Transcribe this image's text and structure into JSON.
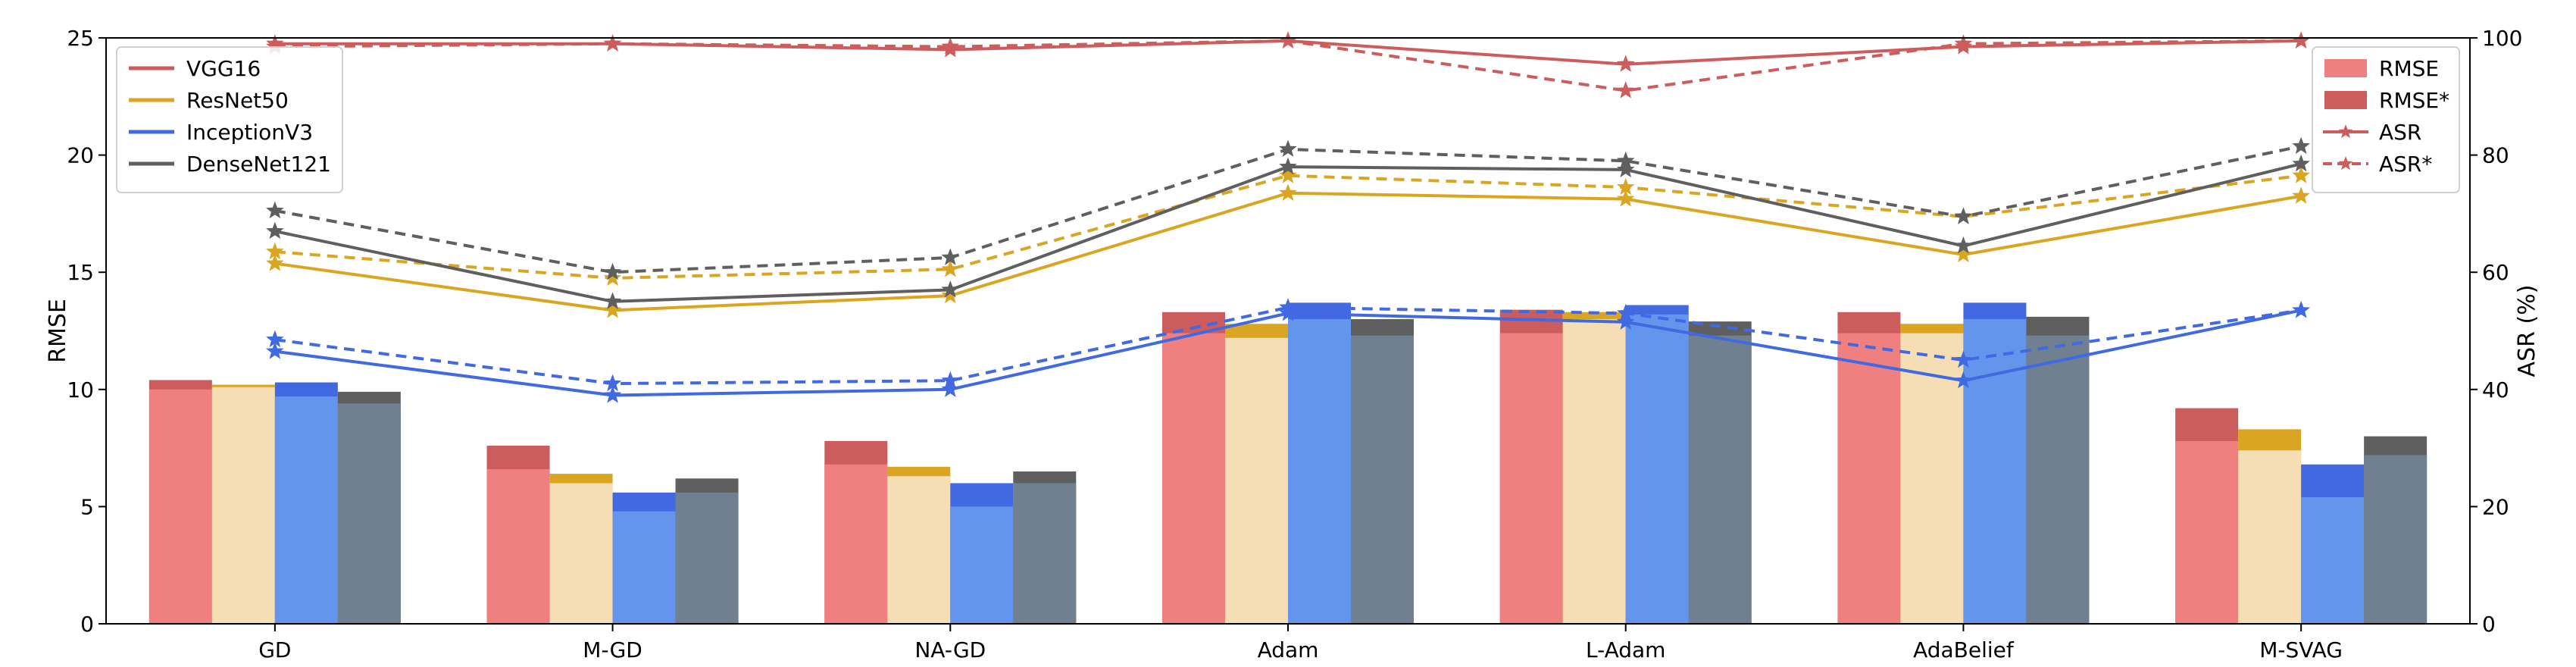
{
  "chart_data": {
    "type": "bar",
    "categories": [
      "GD",
      "M-GD",
      "NA-GD",
      "Adam",
      "L-Adam",
      "AdaBelief",
      "M-SVAG"
    ],
    "ylabel_left": "RMSE",
    "ylabel_right": "ASR (%)",
    "ylim_left": [
      0,
      25
    ],
    "ylim_right": [
      0,
      100
    ],
    "yticks_left": [
      "0",
      "5",
      "10",
      "15",
      "20",
      "25"
    ],
    "yticks_right": [
      "0",
      "20",
      "40",
      "60",
      "80",
      "100"
    ],
    "grid": false,
    "colors": {
      "VGG16": {
        "line": "#cd5c5c",
        "bar": "#f08080",
        "bar_star": "#cd5c5c"
      },
      "ResNet50": {
        "line": "#daa520",
        "bar": "#f5deb3",
        "bar_star": "#daa520"
      },
      "InceptionV3": {
        "line": "#4169e1",
        "bar": "#6495ed",
        "bar_star": "#4169e1"
      },
      "DenseNet121": {
        "line": "#5f5f5f",
        "bar": "#708090",
        "bar_star": "#5f5f5f"
      }
    },
    "series": [
      {
        "name": "VGG16",
        "rmse": [
          10.0,
          6.6,
          6.8,
          12.4,
          12.4,
          12.4,
          7.8
        ],
        "rmse_star": [
          10.4,
          7.6,
          7.8,
          13.3,
          13.4,
          13.3,
          9.2
        ],
        "asr": [
          99.0,
          99.0,
          98.0,
          99.5,
          95.5,
          98.5,
          99.5
        ],
        "asr_star": [
          98.5,
          99.0,
          98.5,
          99.5,
          91.0,
          99.0,
          99.5
        ]
      },
      {
        "name": "ResNet50",
        "rmse": [
          10.1,
          6.0,
          6.3,
          12.2,
          13.0,
          12.4,
          7.4
        ],
        "rmse_star": [
          10.2,
          6.4,
          6.7,
          12.8,
          13.3,
          12.8,
          8.3
        ],
        "asr": [
          61.5,
          53.5,
          56.0,
          73.5,
          72.5,
          63.0,
          73.0
        ],
        "asr_star": [
          63.5,
          59.0,
          60.5,
          76.5,
          74.5,
          69.5,
          76.5
        ]
      },
      {
        "name": "InceptionV3",
        "rmse": [
          9.7,
          4.8,
          5.0,
          13.0,
          13.2,
          13.0,
          5.4
        ],
        "rmse_star": [
          10.3,
          5.6,
          6.0,
          13.7,
          13.6,
          13.7,
          6.8
        ],
        "asr": [
          46.5,
          39.0,
          40.0,
          53.0,
          51.5,
          41.5,
          53.5
        ],
        "asr_star": [
          48.5,
          41.0,
          41.5,
          54.0,
          53.0,
          45.0,
          53.5
        ]
      },
      {
        "name": "DenseNet121",
        "rmse": [
          9.4,
          5.6,
          6.0,
          12.3,
          12.3,
          12.3,
          7.2
        ],
        "rmse_star": [
          9.9,
          6.2,
          6.5,
          13.0,
          12.9,
          13.1,
          8.0
        ],
        "asr": [
          67.0,
          55.0,
          57.0,
          78.0,
          77.5,
          64.5,
          78.5
        ],
        "asr_star": [
          70.5,
          60.0,
          62.5,
          81.0,
          79.0,
          69.5,
          81.5
        ]
      }
    ],
    "legend_models": {
      "placement": "top-left",
      "entries": [
        "VGG16",
        "ResNet50",
        "InceptionV3",
        "DenseNet121"
      ]
    },
    "legend_metrics": {
      "placement": "top-right",
      "entries": [
        "RMSE",
        "RMSE*",
        "ASR",
        "ASR*"
      ]
    }
  }
}
